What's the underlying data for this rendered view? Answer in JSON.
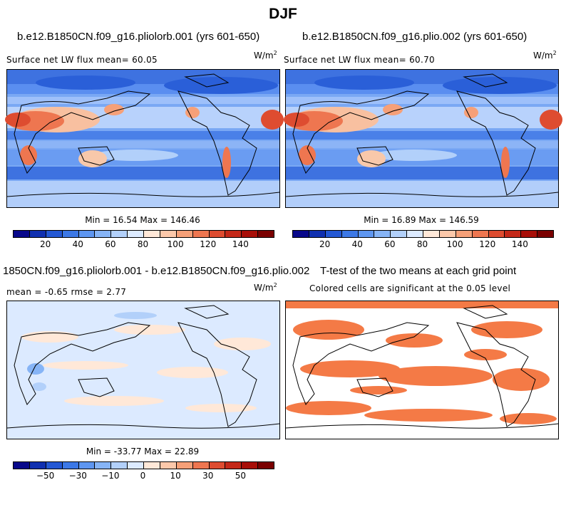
{
  "figure": {
    "title": "DJF"
  },
  "panels": {
    "p1": {
      "title": "b.e12.B1850CN.f09_g16.pliolorb.001 (yrs 601-650)",
      "subtitle": "Surface net LW flux mean=  60.05",
      "units": "W/m",
      "units_exp": "2",
      "stats": "Min =  16.54 Max = 146.46"
    },
    "p2": {
      "title": "b.e12.B1850CN.f09_g16.plio.002 (yrs 601-650)",
      "subtitle": "Surface net LW flux mean=  60.70",
      "units": "W/m",
      "units_exp": "2",
      "stats": "Min =  16.89 Max = 146.59"
    },
    "p3": {
      "title": "1850CN.f09_g16.pliolorb.001 - b.e12.B1850CN.f09_g16.plio.002",
      "subtitle": "mean =  -0.65    rmse =   2.77",
      "units": "W/m",
      "units_exp": "2",
      "stats": "Min = -33.77 Max =  22.89"
    },
    "p4": {
      "title": "T-test of the two means at each grid point",
      "subtitle": "Colored cells are significant at the 0.05 level"
    }
  },
  "colorbars": {
    "abs": {
      "colors": [
        "#08088a",
        "#1030b0",
        "#2458d4",
        "#3c78e6",
        "#5e96f0",
        "#86b4f6",
        "#b2d0fa",
        "#dceaff",
        "#ffe8d8",
        "#fcc8aa",
        "#f6a078",
        "#ee7650",
        "#de4c30",
        "#c42818",
        "#a80e08",
        "#7a0000"
      ],
      "ticks": [
        "20",
        "40",
        "60",
        "80",
        "100",
        "120",
        "140"
      ]
    },
    "diff": {
      "colors": [
        "#08088a",
        "#1030b0",
        "#2458d4",
        "#3c78e6",
        "#5e96f0",
        "#86b4f6",
        "#b2d0fa",
        "#dceaff",
        "#ffe8d8",
        "#fcc8aa",
        "#f6a078",
        "#ee7650",
        "#de4c30",
        "#c42818",
        "#a80e08",
        "#7a0000"
      ],
      "ticks": [
        "−50",
        "−30",
        "−10",
        "0",
        "10",
        "30",
        "50"
      ]
    }
  },
  "colors": {
    "significant": "#f47a46",
    "diff_background": "#dceaff",
    "diff_positive": "#ffe8d8",
    "ocean_deep": "#2a5fd8",
    "ocean_mid": "#6a9cf2",
    "warm": "#ee6a3c"
  }
}
